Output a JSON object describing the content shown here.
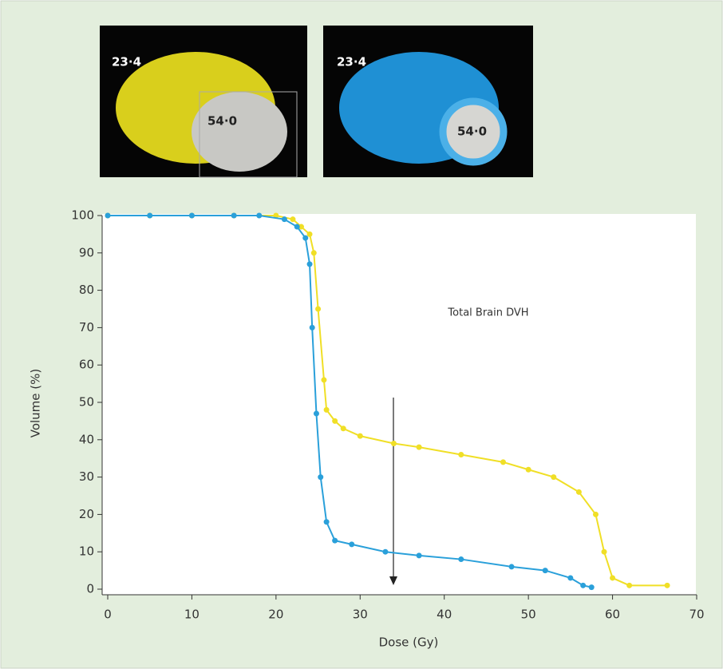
{
  "chart_data": {
    "type": "line",
    "image_labels": [
      [
        "23·4",
        "54·0"
      ],
      [
        "23·4",
        "54·0"
      ]
    ],
    "annotations": [
      "Total Brain DVH"
    ],
    "xlabel": "Dose (Gy)",
    "ylabel": "Volume (%)",
    "xlim": [
      0,
      70
    ],
    "ylim": [
      0,
      100
    ],
    "xticks": [
      0,
      10,
      20,
      30,
      40,
      50,
      60,
      70
    ],
    "yticks": [
      0,
      10,
      20,
      30,
      40,
      50,
      60,
      70,
      80,
      90,
      100
    ],
    "series": [
      {
        "color": "#f0df26",
        "x": [
          0,
          5,
          10,
          15,
          20,
          22,
          23,
          24,
          24.5,
          25,
          25.7,
          26,
          27,
          28,
          30,
          34,
          37,
          42,
          47,
          50,
          53,
          56,
          58,
          59,
          60,
          62,
          66.5
        ],
        "values": [
          100,
          100,
          100,
          100,
          100,
          99,
          97,
          95,
          90,
          75,
          56,
          48,
          45,
          43,
          41,
          39,
          38,
          36,
          34,
          32,
          30,
          26,
          20,
          10,
          3,
          1,
          1
        ]
      },
      {
        "color": "#2aa0da",
        "x": [
          0,
          5,
          10,
          15,
          18,
          21,
          22.5,
          23.5,
          24,
          24.3,
          24.8,
          25.3,
          26,
          27,
          29,
          33,
          37,
          42,
          48,
          52,
          55,
          56.5,
          57.5
        ],
        "values": [
          100,
          100,
          100,
          100,
          100,
          99,
          97,
          94,
          87,
          70,
          47,
          30,
          18,
          13,
          12,
          10,
          9,
          8,
          6,
          5,
          3,
          1,
          0.5
        ]
      }
    ]
  }
}
